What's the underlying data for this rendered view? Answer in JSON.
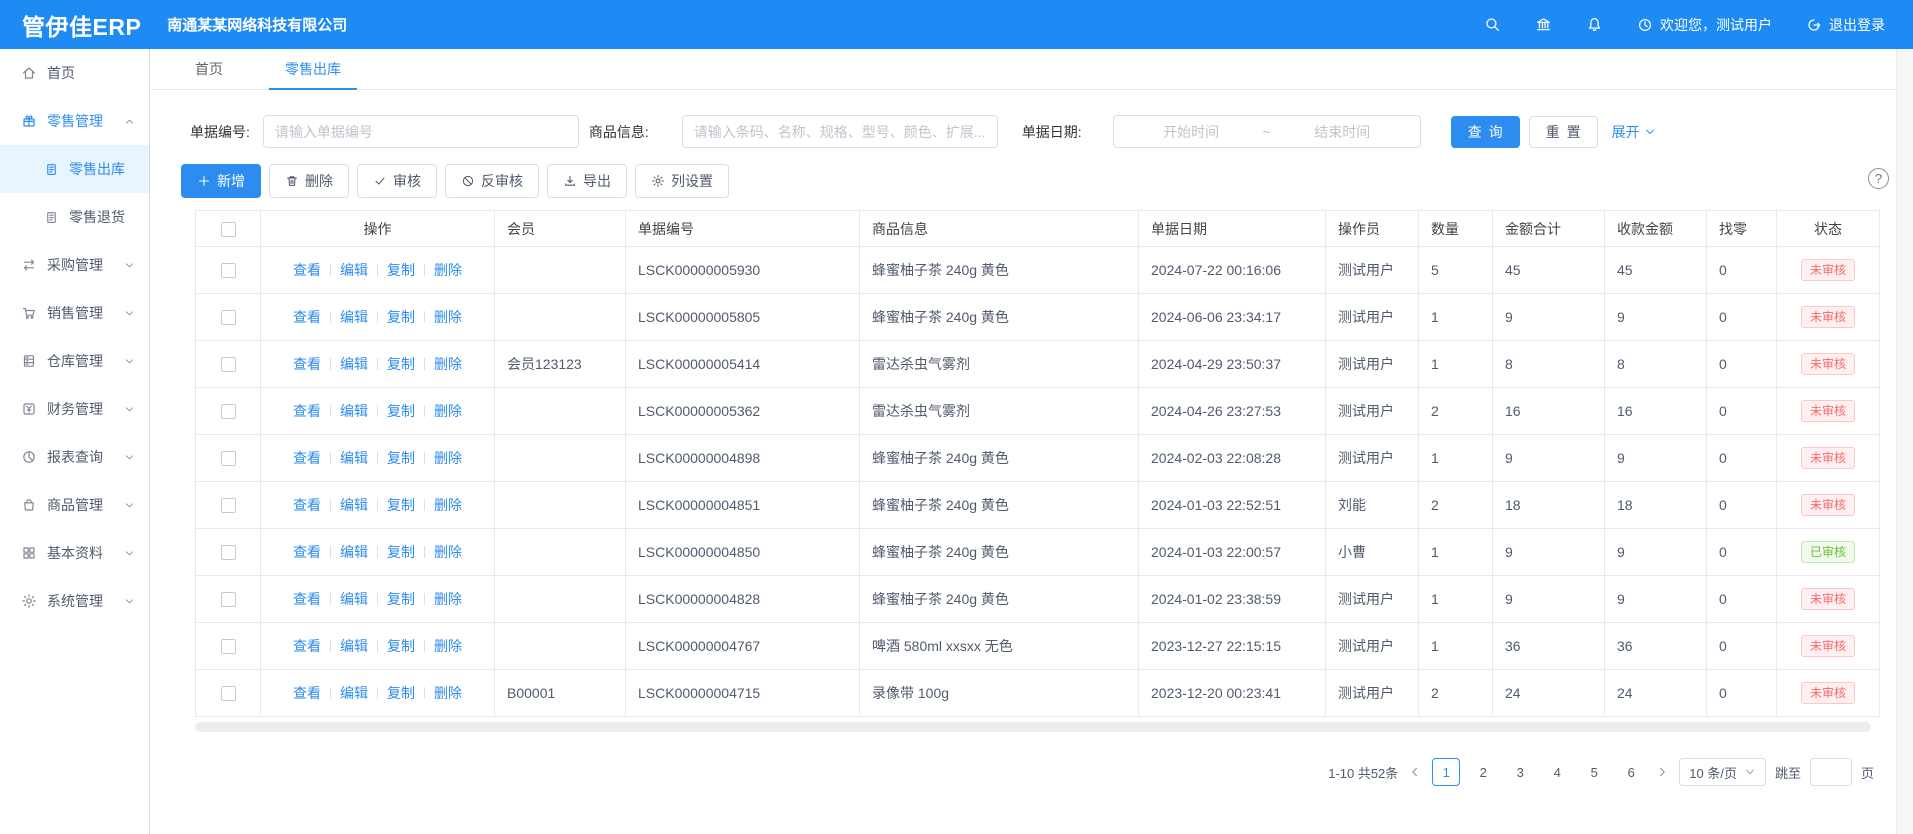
{
  "colors": {
    "accent": "#2d8cf0",
    "header_bg": "#1e8bf5",
    "danger": "#f56c6c",
    "success": "#67c23a"
  },
  "header": {
    "logo": "管伊佳ERP",
    "company": "南通某某网络科技有限公司",
    "welcome": "欢迎您，测试用户",
    "logout": "退出登录",
    "icons": [
      "search-icon",
      "bank-icon",
      "bell-icon",
      "clock-icon",
      "logout-icon"
    ]
  },
  "tabs": [
    {
      "id": "home",
      "label": "首页",
      "active": false
    },
    {
      "id": "retail-outbound",
      "label": "零售出库",
      "active": true
    }
  ],
  "sidebar": {
    "items": [
      {
        "id": "home",
        "label": "首页",
        "icon": "home"
      },
      {
        "id": "retail",
        "label": "零售管理",
        "icon": "gift",
        "caret": "up",
        "active_parent": true
      },
      {
        "id": "retail-outbound",
        "label": "零售出库",
        "icon": "doc",
        "child": true,
        "active": true
      },
      {
        "id": "retail-return",
        "label": "零售退货",
        "icon": "doc",
        "child": true
      },
      {
        "id": "purchase",
        "label": "采购管理",
        "icon": "swap",
        "caret": "down"
      },
      {
        "id": "sales",
        "label": "销售管理",
        "icon": "cart",
        "caret": "down"
      },
      {
        "id": "warehouse",
        "label": "仓库管理",
        "icon": "warehouse",
        "caret": "down"
      },
      {
        "id": "finance",
        "label": "财务管理",
        "icon": "finance",
        "caret": "down"
      },
      {
        "id": "report",
        "label": "报表查询",
        "icon": "report",
        "caret": "down"
      },
      {
        "id": "goods",
        "label": "商品管理",
        "icon": "bag",
        "caret": "down"
      },
      {
        "id": "basic",
        "label": "基本资料",
        "icon": "grid",
        "caret": "down"
      },
      {
        "id": "system",
        "label": "系统管理",
        "icon": "gear",
        "caret": "down"
      }
    ]
  },
  "filters": {
    "bill_no_label": "单据编号:",
    "bill_no_placeholder": "请输入单据编号",
    "product_label": "商品信息:",
    "product_placeholder": "请输入条码、名称、规格、型号、颜色、扩展...",
    "date_label": "单据日期:",
    "date_start_placeholder": "开始时间",
    "date_separator": "~",
    "date_end_placeholder": "结束时间",
    "search_button": "查询",
    "reset_button": "重置",
    "expand_link": "展开"
  },
  "toolbar": {
    "buttons": [
      {
        "id": "add",
        "label": "新增",
        "icon": "plus",
        "primary": true
      },
      {
        "id": "delete",
        "label": "删除",
        "icon": "trash"
      },
      {
        "id": "audit",
        "label": "审核",
        "icon": "check"
      },
      {
        "id": "unaudit",
        "label": "反审核",
        "icon": "ban"
      },
      {
        "id": "export",
        "label": "导出",
        "icon": "download"
      },
      {
        "id": "columns",
        "label": "列设置",
        "icon": "gear"
      }
    ]
  },
  "help_icon": "?",
  "table": {
    "headers": [
      "操作",
      "会员",
      "单据编号",
      "商品信息",
      "单据日期",
      "操作员",
      "数量",
      "金额合计",
      "收款金额",
      "找零",
      "状态"
    ],
    "action_links": [
      "查看",
      "编辑",
      "复制",
      "删除"
    ],
    "rows": [
      {
        "member": "",
        "bill_no": "LSCK00000005930",
        "product": "蜂蜜柚子茶 240g 黄色",
        "date": "2024-07-22 00:16:06",
        "operator": "测试用户",
        "qty": "5",
        "total": "45",
        "received": "45",
        "change": "0",
        "status": "未审核",
        "status_type": "danger"
      },
      {
        "member": "",
        "bill_no": "LSCK00000005805",
        "product": "蜂蜜柚子茶 240g 黄色",
        "date": "2024-06-06 23:34:17",
        "operator": "测试用户",
        "qty": "1",
        "total": "9",
        "received": "9",
        "change": "0",
        "status": "未审核",
        "status_type": "danger"
      },
      {
        "member": "会员123123",
        "bill_no": "LSCK00000005414",
        "product": "雷达杀虫气雾剂",
        "date": "2024-04-29 23:50:37",
        "operator": "测试用户",
        "qty": "1",
        "total": "8",
        "received": "8",
        "change": "0",
        "status": "未审核",
        "status_type": "danger"
      },
      {
        "member": "",
        "bill_no": "LSCK00000005362",
        "product": "雷达杀虫气雾剂",
        "date": "2024-04-26 23:27:53",
        "operator": "测试用户",
        "qty": "2",
        "total": "16",
        "received": "16",
        "change": "0",
        "status": "未审核",
        "status_type": "danger"
      },
      {
        "member": "",
        "bill_no": "LSCK00000004898",
        "product": "蜂蜜柚子茶 240g 黄色",
        "date": "2024-02-03 22:08:28",
        "operator": "测试用户",
        "qty": "1",
        "total": "9",
        "received": "9",
        "change": "0",
        "status": "未审核",
        "status_type": "danger"
      },
      {
        "member": "",
        "bill_no": "LSCK00000004851",
        "product": "蜂蜜柚子茶 240g 黄色",
        "date": "2024-01-03 22:52:51",
        "operator": "刘能",
        "qty": "2",
        "total": "18",
        "received": "18",
        "change": "0",
        "status": "未审核",
        "status_type": "danger"
      },
      {
        "member": "",
        "bill_no": "LSCK00000004850",
        "product": "蜂蜜柚子茶 240g 黄色",
        "date": "2024-01-03 22:00:57",
        "operator": "小曹",
        "qty": "1",
        "total": "9",
        "received": "9",
        "change": "0",
        "status": "已审核",
        "status_type": "success"
      },
      {
        "member": "",
        "bill_no": "LSCK00000004828",
        "product": "蜂蜜柚子茶 240g 黄色",
        "date": "2024-01-02 23:38:59",
        "operator": "测试用户",
        "qty": "1",
        "total": "9",
        "received": "9",
        "change": "0",
        "status": "未审核",
        "status_type": "danger"
      },
      {
        "member": "",
        "bill_no": "LSCK00000004767",
        "product": "啤酒 580ml xxsxx 无色",
        "date": "2023-12-27 22:15:15",
        "operator": "测试用户",
        "qty": "1",
        "total": "36",
        "received": "36",
        "change": "0",
        "status": "未审核",
        "status_type": "danger"
      },
      {
        "member": "B00001",
        "bill_no": "LSCK00000004715",
        "product": "录像带 100g",
        "date": "2023-12-20 00:23:41",
        "operator": "测试用户",
        "qty": "2",
        "total": "24",
        "received": "24",
        "change": "0",
        "status": "未审核",
        "status_type": "danger"
      }
    ]
  },
  "pagination": {
    "total": "1-10 共52条",
    "pages": [
      "1",
      "2",
      "3",
      "4",
      "5",
      "6"
    ],
    "active_page": "1",
    "page_size": "10 条/页",
    "jump_label": "跳至",
    "jump_suffix": "页"
  }
}
